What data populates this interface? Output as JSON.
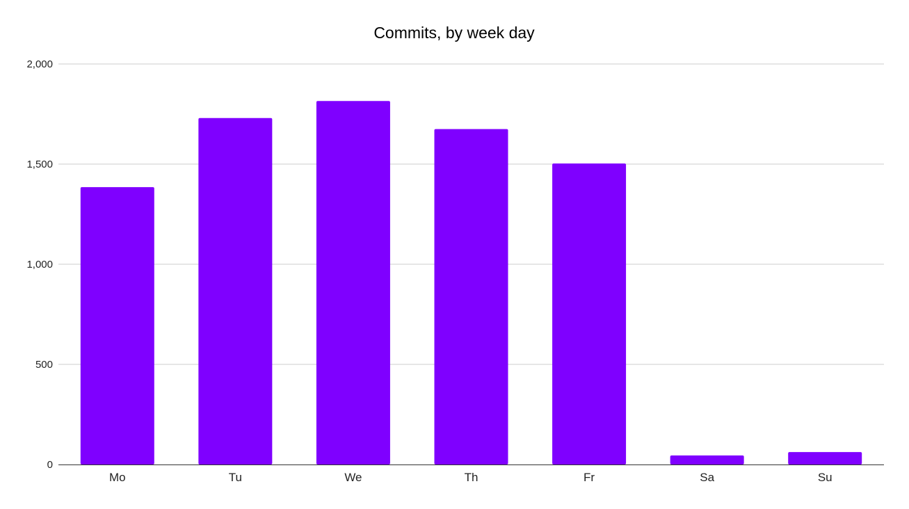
{
  "chart_data": {
    "type": "bar",
    "title": "Commits, by week day",
    "xlabel": "",
    "ylabel": "",
    "categories": [
      "Mo",
      "Tu",
      "We",
      "Th",
      "Fr",
      "Sa",
      "Su"
    ],
    "values": [
      1385,
      1730,
      1815,
      1675,
      1503,
      45,
      62
    ],
    "ylim": [
      0,
      2000
    ],
    "yticks": [
      0,
      500,
      1000,
      1500,
      2000
    ],
    "ytick_labels": [
      "0",
      "500",
      "1,000",
      "1,500",
      "2,000"
    ],
    "grid": true,
    "legend": "none",
    "bar_color": "#7f00ff",
    "grid_color": "#cccccc",
    "axis_color": "#333333"
  }
}
